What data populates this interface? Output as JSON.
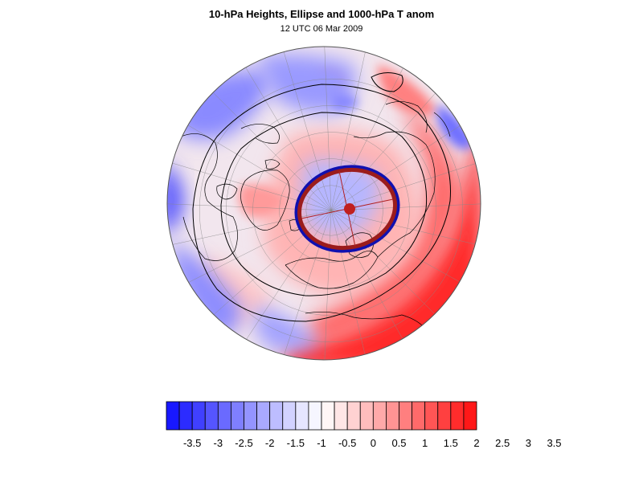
{
  "header": {
    "title": "10-hPa Heights, Ellipse and 1000-hPa T anom",
    "subtitle": "12 UTC 06 Mar 2009"
  },
  "colors": {
    "cold_max": "#0000ff",
    "warm_max": "#ff0000",
    "ellipse_fit": "#9b1c1c",
    "contour_observed": "#1010b0",
    "height_contour": "#000000",
    "coastline": "#000000",
    "grid": "#888888"
  },
  "map": {
    "projection": "north-polar-stereographic",
    "features": [
      "coastlines",
      "latitude-longitude-grid",
      "10-hPa-height-contours",
      "temperature-anomaly-shading",
      "polar-vortex-ellipse"
    ]
  },
  "colorbar": {
    "levels": [
      "-3.5",
      "-3",
      "-2.5",
      "-2",
      "-1.5",
      "-1",
      "-0.5",
      "0",
      "0.5",
      "1",
      "1.5",
      "2",
      "2.5",
      "3",
      "3.5"
    ],
    "boxes": [
      "#1818ff",
      "#2c2cff",
      "#4040ff",
      "#5555ff",
      "#6a6aff",
      "#7f7fff",
      "#9494ff",
      "#a9a9ff",
      "#bdbdff",
      "#d2d2ff",
      "#e6e6ff",
      "#f6f6ff",
      "#fff6f6",
      "#ffe6e6",
      "#ffd2d2",
      "#ffbdbd",
      "#ffa9a9",
      "#ff9494",
      "#ff7f7f",
      "#ff6a6a",
      "#ff5555",
      "#ff4040",
      "#ff2c2c",
      "#ff1818"
    ]
  }
}
